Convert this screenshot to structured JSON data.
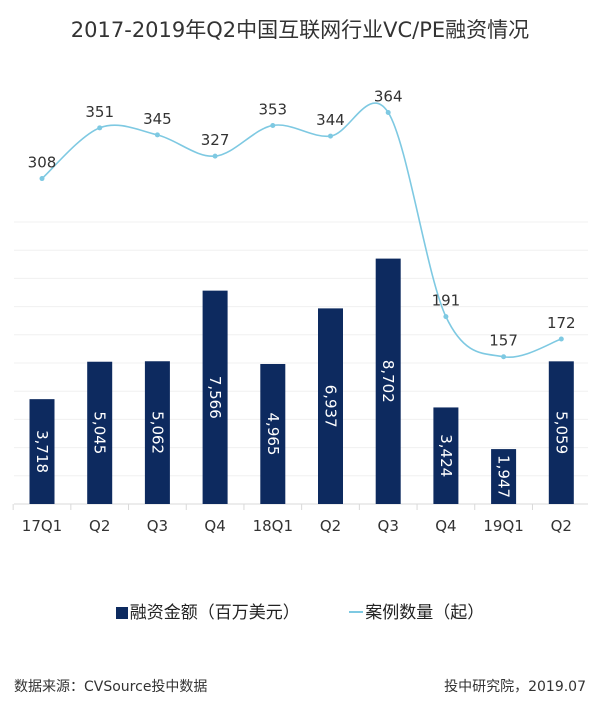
{
  "chart_data": {
    "type": "bar+line",
    "title": "2017-2019年Q2中国互联网行业VC/PE融资情况",
    "categories": [
      "17Q1",
      "Q2",
      "Q3",
      "Q4",
      "18Q1",
      "Q2",
      "Q3",
      "Q4",
      "19Q1",
      "Q2"
    ],
    "series": [
      {
        "name": "融资金额（百万美元）",
        "type": "bar",
        "color": "#0d2a5f",
        "values": [
          3718,
          5045,
          5062,
          7566,
          4965,
          6937,
          8702,
          3424,
          1947,
          5059
        ],
        "labels": [
          "3,718",
          "5,045",
          "5,062",
          "7,566",
          "4,965",
          "6,937",
          "8,702",
          "3,424",
          "1,947",
          "5,059"
        ]
      },
      {
        "name": "案例数量（起）",
        "type": "line",
        "color": "#7ec9e2",
        "values": [
          308,
          351,
          345,
          327,
          353,
          344,
          364,
          191,
          157,
          172
        ]
      }
    ],
    "grid": true,
    "legend_position": "bottom"
  },
  "legend": {
    "bar": "融资金额（百万美元）",
    "line": "案例数量（起）"
  },
  "footer": {
    "source": "数据来源：CVSource投中数据",
    "org": "投中研究院，2019.07"
  }
}
